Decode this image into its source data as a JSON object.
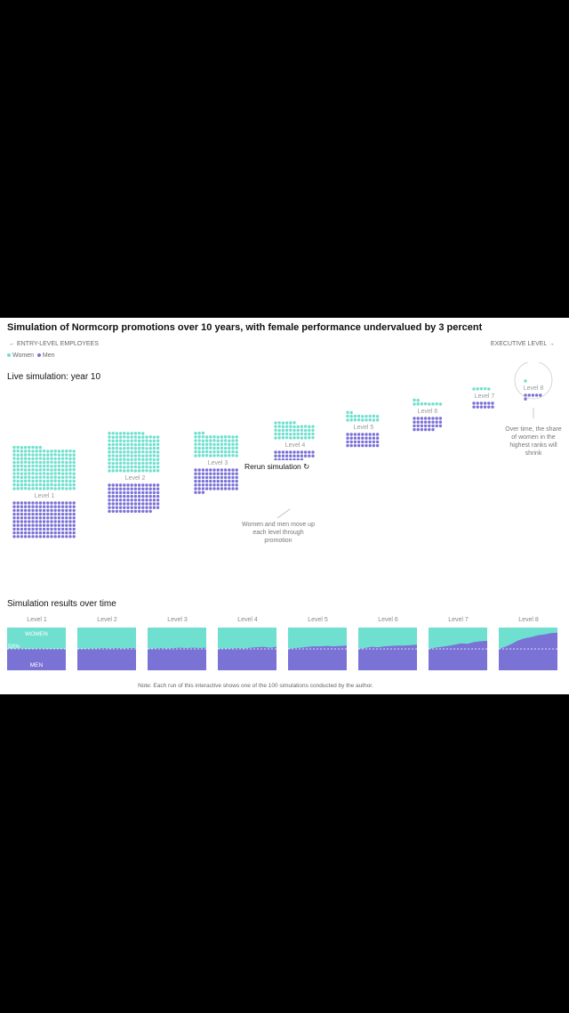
{
  "title": "Simulation of Normcorp promotions over 10 years, with female performance undervalued by 3 percent",
  "header": {
    "entry_label": "ENTRY-LEVEL EMPLOYEES",
    "exec_label": "EXECUTIVE LEVEL",
    "left_arrow": "←",
    "right_arrow": "→"
  },
  "legend": {
    "women": "Women",
    "men": "Men",
    "women_color": "#6fe0cf",
    "men_color": "#7b72d6"
  },
  "live_title": "Live simulation: year 10",
  "rerun_label": "Rerun simulation ↻",
  "levels": [
    {
      "label": "Level 1",
      "women": 195,
      "men": 170
    },
    {
      "label": "Level 2",
      "women": 150,
      "men": 110
    },
    {
      "label": "Level 3",
      "women": 75,
      "men": 75
    },
    {
      "label": "Level 4",
      "women": 50,
      "men": 30
    },
    {
      "label": "Level 5",
      "women": 20,
      "men": 36
    },
    {
      "label": "Level 6",
      "women": 10,
      "men": 30
    },
    {
      "label": "Level 7",
      "women": 5,
      "men": 12
    },
    {
      "label": "Level 8",
      "women": 1,
      "men": 6
    }
  ],
  "annotations": {
    "move_up": "Women and men move up each level through promotion",
    "shrink": "Over time, the share of women in the highest ranks will shrink"
  },
  "results_title": "Simulation results over time",
  "results_labels": {
    "women": "WOMEN",
    "men": "MEN",
    "fifty": "50%"
  },
  "note": "Note: Each run of this interactive shows one of the 100 simulations conducted by the author.",
  "chart_data": {
    "type": "area",
    "title": "Simulation results over time",
    "ylabel": "",
    "ylim": [
      0,
      100
    ],
    "reference_line": 50,
    "x": [
      1,
      2,
      3,
      4,
      5,
      6,
      7,
      8,
      9,
      10
    ],
    "series_note": "share of men (%) per level over time; remainder is women",
    "series": [
      {
        "name": "Level 1",
        "men_share": [
          50,
          50,
          51,
          50,
          50,
          51,
          50,
          50,
          50,
          50
        ]
      },
      {
        "name": "Level 2",
        "men_share": [
          50,
          50,
          51,
          51,
          52,
          51,
          52,
          51,
          52,
          52
        ]
      },
      {
        "name": "Level 3",
        "men_share": [
          50,
          51,
          52,
          51,
          52,
          53,
          52,
          53,
          52,
          53
        ]
      },
      {
        "name": "Level 4",
        "men_share": [
          50,
          51,
          51,
          52,
          51,
          53,
          54,
          55,
          53,
          55
        ]
      },
      {
        "name": "Level 5",
        "men_share": [
          50,
          52,
          53,
          55,
          56,
          56,
          57,
          56,
          57,
          58
        ]
      },
      {
        "name": "Level 6",
        "men_share": [
          50,
          52,
          55,
          54,
          56,
          57,
          58,
          58,
          59,
          60
        ]
      },
      {
        "name": "Level 7",
        "men_share": [
          50,
          53,
          55,
          57,
          60,
          63,
          62,
          66,
          68,
          69
        ]
      },
      {
        "name": "Level 8",
        "men_share": [
          50,
          55,
          62,
          70,
          75,
          78,
          82,
          84,
          87,
          88
        ]
      }
    ]
  }
}
